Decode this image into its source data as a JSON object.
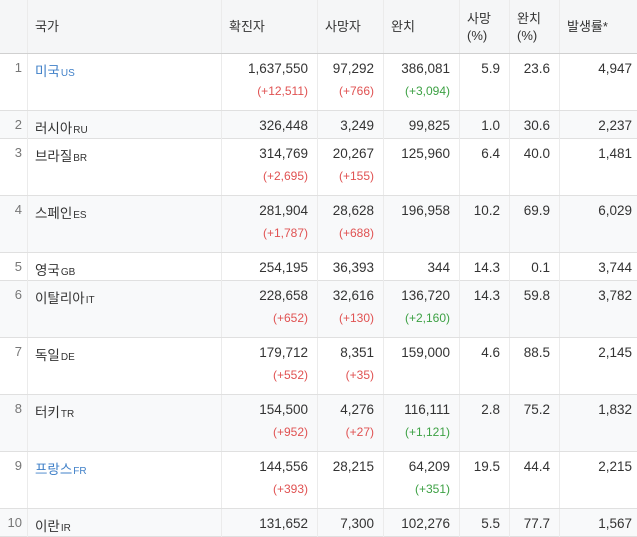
{
  "colors": {
    "link_blue": "#4080c8",
    "delta_red": "#e05252",
    "delta_green": "#3da144",
    "header_bg": "#f5f6f7",
    "stripe_bg": "#f8f9fa",
    "text": "#333333"
  },
  "table": {
    "headers": {
      "rank": "",
      "country": "국가",
      "confirmed": "확진자",
      "deaths": "사망자",
      "recovered": "완치",
      "death_pct_line1": "사망",
      "death_pct_line2": "(%)",
      "recovered_pct_line1": "완치",
      "recovered_pct_line2": "(%)",
      "incidence": "발생률*"
    },
    "rows": [
      {
        "rank": "1",
        "country": "미국",
        "code": "US",
        "blue": true,
        "confirmed": "1,637,550",
        "confirmed_delta": "(+12,511)",
        "deaths": "97,292",
        "deaths_delta": "(+766)",
        "recovered": "386,081",
        "recovered_delta": "(+3,094)",
        "death_pct": "5.9",
        "recovered_pct": "23.6",
        "incidence": "4,947"
      },
      {
        "rank": "2",
        "country": "러시아",
        "code": "RU",
        "blue": false,
        "confirmed": "326,448",
        "confirmed_delta": "",
        "deaths": "3,249",
        "deaths_delta": "",
        "recovered": "99,825",
        "recovered_delta": "",
        "death_pct": "1.0",
        "recovered_pct": "30.6",
        "incidence": "2,237"
      },
      {
        "rank": "3",
        "country": "브라질",
        "code": "BR",
        "blue": false,
        "confirmed": "314,769",
        "confirmed_delta": "(+2,695)",
        "deaths": "20,267",
        "deaths_delta": "(+155)",
        "recovered": "125,960",
        "recovered_delta": "",
        "death_pct": "6.4",
        "recovered_pct": "40.0",
        "incidence": "1,481"
      },
      {
        "rank": "4",
        "country": "스페인",
        "code": "ES",
        "blue": false,
        "confirmed": "281,904",
        "confirmed_delta": "(+1,787)",
        "deaths": "28,628",
        "deaths_delta": "(+688)",
        "recovered": "196,958",
        "recovered_delta": "",
        "death_pct": "10.2",
        "recovered_pct": "69.9",
        "incidence": "6,029"
      },
      {
        "rank": "5",
        "country": "영국",
        "code": "GB",
        "blue": false,
        "confirmed": "254,195",
        "confirmed_delta": "",
        "deaths": "36,393",
        "deaths_delta": "",
        "recovered": "344",
        "recovered_delta": "",
        "death_pct": "14.3",
        "recovered_pct": "0.1",
        "incidence": "3,744"
      },
      {
        "rank": "6",
        "country": "이탈리아",
        "code": "IT",
        "blue": false,
        "confirmed": "228,658",
        "confirmed_delta": "(+652)",
        "deaths": "32,616",
        "deaths_delta": "(+130)",
        "recovered": "136,720",
        "recovered_delta": "(+2,160)",
        "death_pct": "14.3",
        "recovered_pct": "59.8",
        "incidence": "3,782"
      },
      {
        "rank": "7",
        "country": "독일",
        "code": "DE",
        "blue": false,
        "confirmed": "179,712",
        "confirmed_delta": "(+552)",
        "deaths": "8,351",
        "deaths_delta": "(+35)",
        "recovered": "159,000",
        "recovered_delta": "",
        "death_pct": "4.6",
        "recovered_pct": "88.5",
        "incidence": "2,145"
      },
      {
        "rank": "8",
        "country": "터키",
        "code": "TR",
        "blue": false,
        "confirmed": "154,500",
        "confirmed_delta": "(+952)",
        "deaths": "4,276",
        "deaths_delta": "(+27)",
        "recovered": "116,111",
        "recovered_delta": "(+1,121)",
        "death_pct": "2.8",
        "recovered_pct": "75.2",
        "incidence": "1,832"
      },
      {
        "rank": "9",
        "country": "프랑스",
        "code": "FR",
        "blue": true,
        "confirmed": "144,556",
        "confirmed_delta": "(+393)",
        "deaths": "28,215",
        "deaths_delta": "",
        "recovered": "64,209",
        "recovered_delta": "(+351)",
        "death_pct": "19.5",
        "recovered_pct": "44.4",
        "incidence": "2,215"
      },
      {
        "rank": "10",
        "country": "이란",
        "code": "IR",
        "blue": false,
        "confirmed": "131,652",
        "confirmed_delta": "",
        "deaths": "7,300",
        "deaths_delta": "",
        "recovered": "102,276",
        "recovered_delta": "",
        "death_pct": "5.5",
        "recovered_pct": "77.7",
        "incidence": "1,567"
      }
    ]
  }
}
